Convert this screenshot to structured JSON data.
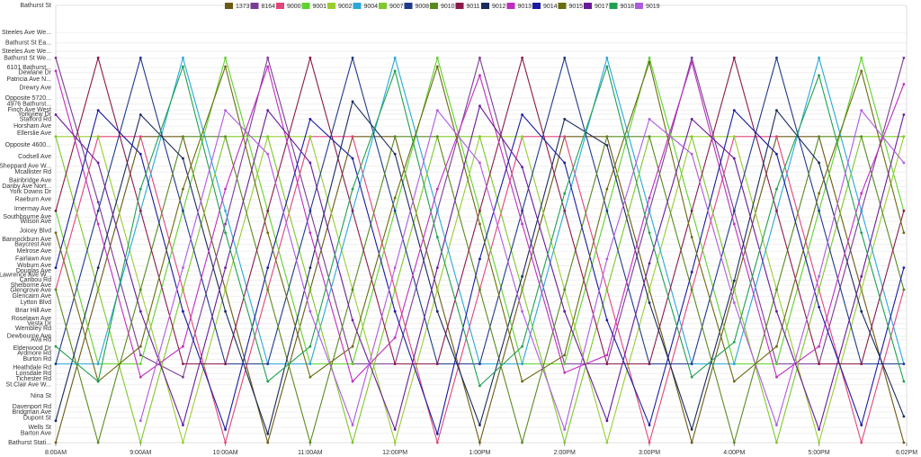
{
  "chart_data": {
    "type": "line",
    "xlim": [
      8,
      18.033
    ],
    "xticks": [
      {
        "value": 8,
        "label": "8:00AM"
      },
      {
        "value": 9,
        "label": "9:00AM"
      },
      {
        "value": 10,
        "label": "10:00AM"
      },
      {
        "value": 11,
        "label": "11:00AM"
      },
      {
        "value": 12,
        "label": "12:00PM"
      },
      {
        "value": 13,
        "label": "1:00PM"
      },
      {
        "value": 14,
        "label": "2:00PM"
      },
      {
        "value": 15,
        "label": "3:00PM"
      },
      {
        "value": 16,
        "label": "4:00PM"
      },
      {
        "value": 17,
        "label": "5:00PM"
      },
      {
        "value": 18.033,
        "label": "6:02PM"
      }
    ],
    "ylim": [
      0,
      100
    ],
    "yticks": [
      {
        "value": 100,
        "label": "Bathurst St"
      },
      {
        "value": 93.8,
        "label": "Steeles Ave We..."
      },
      {
        "value": 91.4,
        "label": "Bathurst St Ea..."
      },
      {
        "value": 89.5,
        "label": "Steeles Ave We..."
      },
      {
        "value": 87.9,
        "label": "Bathurst St We..."
      },
      {
        "value": 85.8,
        "label": "6101 Bathurst..."
      },
      {
        "value": 84.6,
        "label": "Dewlane Dr"
      },
      {
        "value": 83.1,
        "label": "Patricia Ave N..."
      },
      {
        "value": 81.1,
        "label": "Drewry Ave"
      },
      {
        "value": 78.8,
        "label": "Opposite 5720..."
      },
      {
        "value": 77.4,
        "label": "4976 Bathurst..."
      },
      {
        "value": 76.1,
        "label": "Finch Ave West"
      },
      {
        "value": 75.1,
        "label": "Yorkview Dr"
      },
      {
        "value": 73.9,
        "label": "Stafford Rd"
      },
      {
        "value": 72.4,
        "label": "Horsham Ave"
      },
      {
        "value": 70.8,
        "label": "Ellerslie Ave"
      },
      {
        "value": 68.1,
        "label": "Opposite 4600..."
      },
      {
        "value": 65.4,
        "label": "Codsell Ave"
      },
      {
        "value": 63.2,
        "label": "Sheppard Ave W..."
      },
      {
        "value": 61.9,
        "label": "Mcallister Rd"
      },
      {
        "value": 59.9,
        "label": "Bainbridge Ave"
      },
      {
        "value": 58.6,
        "label": "Danby Ave Nort..."
      },
      {
        "value": 57.4,
        "label": "York Downs Dr"
      },
      {
        "value": 55.6,
        "label": "Raeburn Ave"
      },
      {
        "value": 53.5,
        "label": "Irnermay Ave"
      },
      {
        "value": 51.6,
        "label": "Southbourne Ave"
      },
      {
        "value": 50.6,
        "label": "Wilson Ave"
      },
      {
        "value": 48.4,
        "label": "Joicey Blvd"
      },
      {
        "value": 46.5,
        "label": "Bannockburn Ave"
      },
      {
        "value": 45.3,
        "label": "Baycrest Ave"
      },
      {
        "value": 43.8,
        "label": "Melrose Ave"
      },
      {
        "value": 42.0,
        "label": "Fairlawn Ave"
      },
      {
        "value": 40.5,
        "label": "Woburn Ave"
      },
      {
        "value": 39.3,
        "label": "Douglas Ave"
      },
      {
        "value": 38.3,
        "label": "Lawrence Ave W..."
      },
      {
        "value": 37.2,
        "label": "Caribou Rd"
      },
      {
        "value": 36.0,
        "label": "Shelborne Ave"
      },
      {
        "value": 34.8,
        "label": "Glengrove Ave"
      },
      {
        "value": 33.5,
        "label": "Glencairn Ave"
      },
      {
        "value": 32.1,
        "label": "Lytton Blvd"
      },
      {
        "value": 30.2,
        "label": "Briar Hill Ave"
      },
      {
        "value": 28.4,
        "label": "Roselawn Ave"
      },
      {
        "value": 27.2,
        "label": "Vesta Dr"
      },
      {
        "value": 26.1,
        "label": "Wembley Rd"
      },
      {
        "value": 24.3,
        "label": "Dewbourne Ave"
      },
      {
        "value": 23.5,
        "label": "Ava Rd"
      },
      {
        "value": 21.6,
        "label": "Elderwood Dr"
      },
      {
        "value": 20.4,
        "label": "Ardmore Rd"
      },
      {
        "value": 19.1,
        "label": "Burton Rd"
      },
      {
        "value": 17.1,
        "label": "Heathdale Rd"
      },
      {
        "value": 15.8,
        "label": "Lonsdale Rd"
      },
      {
        "value": 14.6,
        "label": "Tichester Rd"
      },
      {
        "value": 13.2,
        "label": "St.Clair Ave W..."
      },
      {
        "value": 10.7,
        "label": "Nina St"
      },
      {
        "value": 8.2,
        "label": "Davenport Rd"
      },
      {
        "value": 7.0,
        "label": "Bridgman Ave"
      },
      {
        "value": 5.6,
        "label": "Dupont St"
      },
      {
        "value": 3.5,
        "label": "Wells St"
      },
      {
        "value": 2.1,
        "label": "Barton Ave"
      },
      {
        "value": 0,
        "label": "Bathurst Stati..."
      }
    ],
    "grid": true,
    "x": [
      8,
      8.5,
      9,
      9.5,
      10,
      10.5,
      11,
      11.5,
      12,
      12.5,
      13,
      13.5,
      14,
      14.5,
      15,
      15.5,
      16,
      16.5,
      17,
      17.5,
      18
    ],
    "series": [
      {
        "name": "1373",
        "color": "#6b5a13",
        "values": [
          0,
          35,
          70,
          70,
          35,
          0,
          35,
          70,
          70,
          35,
          0,
          35,
          70,
          70,
          35,
          0,
          35,
          70,
          70,
          35,
          0
        ]
      },
      {
        "name": "8164",
        "color": "#7a3d95",
        "values": [
          88,
          55,
          20,
          15,
          50,
          88,
          53,
          18,
          18,
          53,
          88,
          53,
          18,
          18,
          53,
          88,
          53,
          18,
          18,
          53,
          88
        ]
      },
      {
        "name": "9000",
        "color": "#e0457b",
        "values": [
          35,
          70,
          70,
          35,
          0,
          35,
          70,
          70,
          35,
          0,
          35,
          70,
          70,
          35,
          0,
          35,
          70,
          70,
          35,
          0,
          35
        ]
      },
      {
        "name": "9001",
        "color": "#5fd22e",
        "values": [
          53,
          18,
          18,
          53,
          88,
          53,
          18,
          18,
          53,
          88,
          53,
          18,
          18,
          53,
          88,
          53,
          18,
          18,
          53,
          88,
          53
        ]
      },
      {
        "name": "9002",
        "color": "#9acd32",
        "values": [
          70,
          70,
          35,
          0,
          35,
          70,
          70,
          35,
          0,
          35,
          70,
          70,
          35,
          0,
          35,
          70,
          70,
          35,
          0,
          35,
          70
        ]
      },
      {
        "name": "9004",
        "color": "#29a8d8",
        "values": [
          18,
          18,
          53,
          88,
          53,
          18,
          18,
          53,
          88,
          53,
          18,
          18,
          53,
          88,
          53,
          18,
          18,
          53,
          88,
          53,
          18
        ]
      },
      {
        "name": "9007",
        "color": "#7ec82a",
        "values": [
          70,
          35,
          0,
          35,
          70,
          70,
          35,
          0,
          35,
          70,
          70,
          35,
          0,
          35,
          70,
          70,
          35,
          0,
          35,
          70,
          70
        ]
      },
      {
        "name": "9008",
        "color": "#1f3a8c",
        "values": [
          18,
          53,
          88,
          53,
          18,
          18,
          53,
          88,
          53,
          18,
          18,
          53,
          88,
          53,
          18,
          18,
          53,
          88,
          53,
          18,
          18
        ]
      },
      {
        "name": "9010",
        "color": "#5a8a1e",
        "values": [
          35,
          0,
          35,
          70,
          70,
          35,
          0,
          35,
          70,
          70,
          35,
          0,
          35,
          70,
          70,
          35,
          0,
          35,
          70,
          70,
          35
        ]
      },
      {
        "name": "9011",
        "color": "#8b1a4a",
        "values": [
          53,
          88,
          53,
          18,
          18,
          53,
          88,
          53,
          18,
          18,
          53,
          88,
          53,
          18,
          18,
          53,
          88,
          53,
          18,
          18,
          53
        ]
      },
      {
        "name": "9012",
        "color": "#1a2a5a",
        "values": [
          5,
          40,
          75,
          65,
          30,
          2,
          40,
          78,
          66,
          30,
          4,
          38,
          74,
          68,
          32,
          3,
          37,
          76,
          64,
          30,
          6
        ]
      },
      {
        "name": "9013",
        "color": "#c02cc0",
        "values": [
          85,
          50,
          15,
          22,
          58,
          86,
          48,
          14,
          24,
          58,
          84,
          50,
          16,
          20,
          56,
          87,
          50,
          15,
          22,
          57,
          82
        ]
      },
      {
        "name": "9014",
        "color": "#1a1aa0",
        "values": [
          40,
          76,
          66,
          30,
          3,
          40,
          74,
          65,
          30,
          2,
          42,
          75,
          64,
          28,
          4,
          39,
          76,
          66,
          31,
          4,
          40
        ]
      },
      {
        "name": "9015",
        "color": "#6b6b10",
        "values": [
          48,
          14,
          22,
          58,
          86,
          48,
          15,
          22,
          56,
          86,
          50,
          14,
          20,
          58,
          87,
          47,
          14,
          22,
          57,
          85,
          48
        ]
      },
      {
        "name": "9017",
        "color": "#6a1a9a",
        "values": [
          75,
          64,
          30,
          4,
          40,
          76,
          64,
          28,
          3,
          40,
          77,
          63,
          30,
          5,
          41,
          74,
          65,
          30,
          3,
          38,
          75
        ]
      },
      {
        "name": "9018",
        "color": "#20a050",
        "values": [
          22,
          14,
          58,
          86,
          48,
          14,
          22,
          58,
          85,
          47,
          13,
          22,
          57,
          86,
          48,
          15,
          23,
          58,
          84,
          48,
          14
        ]
      },
      {
        "name": "9019",
        "color": "#b05ae0",
        "values": [
          null,
          null,
          5,
          40,
          76,
          66,
          30,
          4,
          40,
          76,
          64,
          30,
          3,
          42,
          74,
          66,
          32,
          4,
          38,
          76,
          64
        ]
      }
    ]
  }
}
